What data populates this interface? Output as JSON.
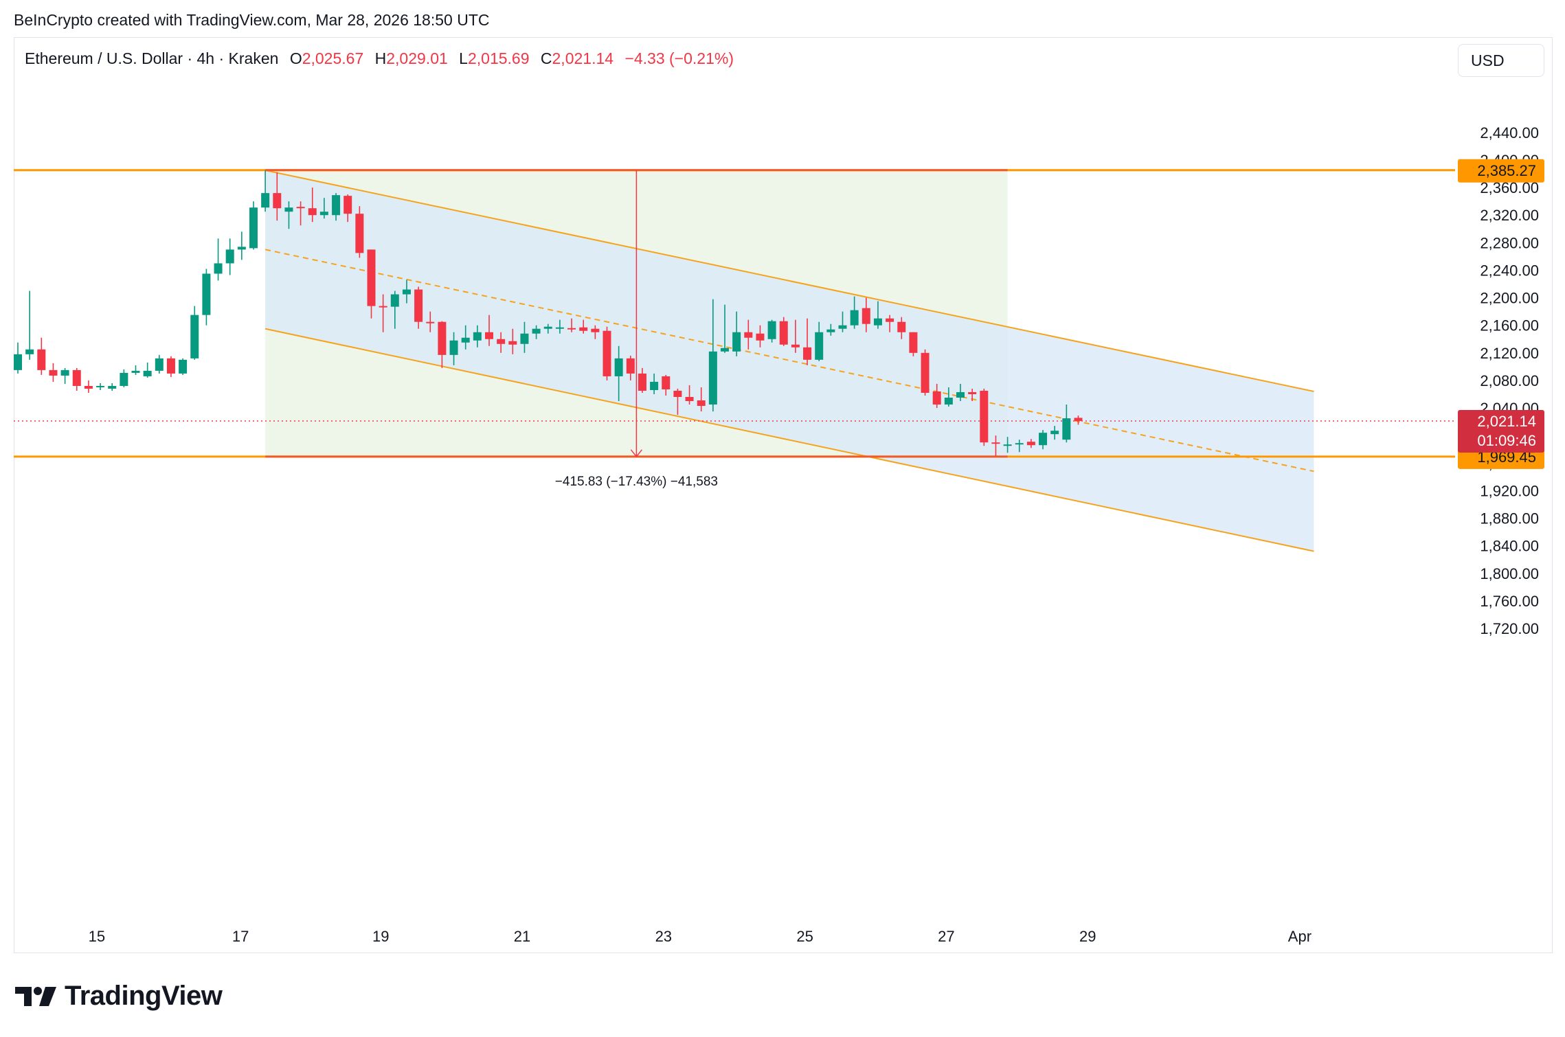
{
  "header": {
    "credit": "BeInCrypto created with TradingView.com, Mar 28, 2026 18:50 UTC"
  },
  "legend": {
    "symbol": "Ethereum / U.S. Dollar · 4h · Kraken",
    "o_label": "O",
    "o_value": "2,025.67",
    "h_label": "H",
    "h_value": "2,029.01",
    "l_label": "L",
    "l_value": "2,015.69",
    "c_label": "C",
    "c_value": "2,021.14",
    "change": "−4.33 (−0.21%)"
  },
  "currency": "USD",
  "brand": {
    "name": "TradingView",
    "icon": "tradingview-logo-icon"
  },
  "colors": {
    "up": "#089981",
    "down": "#f23645",
    "channel_line": "#f7a21b",
    "level_line": "#ff9800",
    "channel_fill": "#dbe9f8",
    "range_fill": "#eef6ea",
    "measure_line": "#f23645"
  },
  "chart_data": {
    "type": "candlestick",
    "timeframe": "4h",
    "y_axis": {
      "ticks": [
        "2,440.00",
        "2,400.00",
        "2,360.00",
        "2,320.00",
        "2,280.00",
        "2,240.00",
        "2,200.00",
        "2,160.00",
        "2,120.00",
        "2,080.00",
        "2,040.00",
        "1,960.00",
        "1,920.00",
        "1,880.00",
        "1,840.00",
        "1,800.00",
        "1,760.00",
        "1,720.00"
      ],
      "range": [
        1715,
        2450
      ]
    },
    "x_axis": {
      "ticks": [
        "15",
        "17",
        "19",
        "21",
        "23",
        "25",
        "27",
        "29",
        "Apr"
      ]
    },
    "price_labels": {
      "resistance": "2,385.27",
      "support": "1,969.45",
      "current_price": "2,021.14",
      "countdown": "01:09:46"
    },
    "levels": {
      "resistance": 2385.27,
      "support": 1969.45,
      "current": 2021.14
    },
    "measure_label": "−415.83 (−17.43%) −41,583",
    "channel": {
      "start_index": 21,
      "end_index": 110,
      "upper": [
        2385,
        2064
      ],
      "lower": [
        2155,
        1832
      ]
    },
    "range_box": {
      "start_index": 21,
      "end_index": 84
    },
    "candles": [
      {
        "o": 2095,
        "h": 2135,
        "l": 2090,
        "c": 2118
      },
      {
        "o": 2118,
        "h": 2210,
        "l": 2110,
        "c": 2125
      },
      {
        "o": 2125,
        "h": 2142,
        "l": 2088,
        "c": 2095
      },
      {
        "o": 2095,
        "h": 2105,
        "l": 2078,
        "c": 2087
      },
      {
        "o": 2087,
        "h": 2098,
        "l": 2075,
        "c": 2095
      },
      {
        "o": 2095,
        "h": 2098,
        "l": 2065,
        "c": 2072
      },
      {
        "o": 2072,
        "h": 2080,
        "l": 2062,
        "c": 2068
      },
      {
        "o": 2070,
        "h": 2076,
        "l": 2066,
        "c": 2072
      },
      {
        "o": 2068,
        "h": 2076,
        "l": 2065,
        "c": 2072
      },
      {
        "o": 2072,
        "h": 2096,
        "l": 2070,
        "c": 2091
      },
      {
        "o": 2091,
        "h": 2102,
        "l": 2088,
        "c": 2094
      },
      {
        "o": 2086,
        "h": 2106,
        "l": 2084,
        "c": 2094
      },
      {
        "o": 2094,
        "h": 2117,
        "l": 2090,
        "c": 2112
      },
      {
        "o": 2112,
        "h": 2115,
        "l": 2085,
        "c": 2090
      },
      {
        "o": 2090,
        "h": 2112,
        "l": 2088,
        "c": 2110
      },
      {
        "o": 2112,
        "h": 2188,
        "l": 2110,
        "c": 2175
      },
      {
        "o": 2175,
        "h": 2242,
        "l": 2160,
        "c": 2235
      },
      {
        "o": 2235,
        "h": 2286,
        "l": 2225,
        "c": 2250
      },
      {
        "o": 2250,
        "h": 2286,
        "l": 2233,
        "c": 2270
      },
      {
        "o": 2270,
        "h": 2296,
        "l": 2255,
        "c": 2274
      },
      {
        "o": 2272,
        "h": 2340,
        "l": 2270,
        "c": 2331
      },
      {
        "o": 2331,
        "h": 2385,
        "l": 2325,
        "c": 2352
      },
      {
        "o": 2352,
        "h": 2382,
        "l": 2312,
        "c": 2330
      },
      {
        "o": 2325,
        "h": 2340,
        "l": 2300,
        "c": 2331
      },
      {
        "o": 2332,
        "h": 2340,
        "l": 2305,
        "c": 2331
      },
      {
        "o": 2330,
        "h": 2360,
        "l": 2310,
        "c": 2320
      },
      {
        "o": 2320,
        "h": 2345,
        "l": 2315,
        "c": 2325
      },
      {
        "o": 2320,
        "h": 2352,
        "l": 2312,
        "c": 2349
      },
      {
        "o": 2348,
        "h": 2350,
        "l": 2310,
        "c": 2322
      },
      {
        "o": 2322,
        "h": 2333,
        "l": 2258,
        "c": 2265
      },
      {
        "o": 2270,
        "h": 2270,
        "l": 2170,
        "c": 2188
      },
      {
        "o": 2188,
        "h": 2205,
        "l": 2150,
        "c": 2187
      },
      {
        "o": 2187,
        "h": 2210,
        "l": 2155,
        "c": 2205
      },
      {
        "o": 2205,
        "h": 2226,
        "l": 2192,
        "c": 2212
      },
      {
        "o": 2212,
        "h": 2216,
        "l": 2155,
        "c": 2165
      },
      {
        "o": 2165,
        "h": 2180,
        "l": 2150,
        "c": 2163
      },
      {
        "o": 2165,
        "h": 2166,
        "l": 2098,
        "c": 2117
      },
      {
        "o": 2117,
        "h": 2150,
        "l": 2102,
        "c": 2138
      },
      {
        "o": 2135,
        "h": 2160,
        "l": 2125,
        "c": 2142
      },
      {
        "o": 2138,
        "h": 2160,
        "l": 2128,
        "c": 2150
      },
      {
        "o": 2150,
        "h": 2175,
        "l": 2130,
        "c": 2140
      },
      {
        "o": 2140,
        "h": 2150,
        "l": 2120,
        "c": 2133
      },
      {
        "o": 2137,
        "h": 2155,
        "l": 2118,
        "c": 2132
      },
      {
        "o": 2133,
        "h": 2165,
        "l": 2120,
        "c": 2148
      },
      {
        "o": 2148,
        "h": 2160,
        "l": 2140,
        "c": 2155
      },
      {
        "o": 2155,
        "h": 2162,
        "l": 2148,
        "c": 2158
      },
      {
        "o": 2155,
        "h": 2168,
        "l": 2148,
        "c": 2157
      },
      {
        "o": 2156,
        "h": 2170,
        "l": 2150,
        "c": 2155
      },
      {
        "o": 2157,
        "h": 2168,
        "l": 2148,
        "c": 2152
      },
      {
        "o": 2155,
        "h": 2160,
        "l": 2140,
        "c": 2150
      },
      {
        "o": 2152,
        "h": 2158,
        "l": 2080,
        "c": 2086
      },
      {
        "o": 2086,
        "h": 2130,
        "l": 2050,
        "c": 2112
      },
      {
        "o": 2112,
        "h": 2116,
        "l": 2080,
        "c": 2090
      },
      {
        "o": 2090,
        "h": 2098,
        "l": 2062,
        "c": 2065
      },
      {
        "o": 2066,
        "h": 2090,
        "l": 2060,
        "c": 2078
      },
      {
        "o": 2086,
        "h": 2088,
        "l": 2058,
        "c": 2067
      },
      {
        "o": 2065,
        "h": 2068,
        "l": 2030,
        "c": 2056
      },
      {
        "o": 2056,
        "h": 2073,
        "l": 2045,
        "c": 2050
      },
      {
        "o": 2051,
        "h": 2070,
        "l": 2035,
        "c": 2043
      },
      {
        "o": 2045,
        "h": 2198,
        "l": 2035,
        "c": 2122
      },
      {
        "o": 2122,
        "h": 2190,
        "l": 2120,
        "c": 2127
      },
      {
        "o": 2122,
        "h": 2180,
        "l": 2115,
        "c": 2150
      },
      {
        "o": 2150,
        "h": 2168,
        "l": 2125,
        "c": 2142
      },
      {
        "o": 2148,
        "h": 2160,
        "l": 2128,
        "c": 2138
      },
      {
        "o": 2140,
        "h": 2168,
        "l": 2135,
        "c": 2166
      },
      {
        "o": 2166,
        "h": 2172,
        "l": 2130,
        "c": 2132
      },
      {
        "o": 2132,
        "h": 2168,
        "l": 2120,
        "c": 2128
      },
      {
        "o": 2128,
        "h": 2170,
        "l": 2102,
        "c": 2110
      },
      {
        "o": 2110,
        "h": 2165,
        "l": 2108,
        "c": 2150
      },
      {
        "o": 2150,
        "h": 2162,
        "l": 2145,
        "c": 2154
      },
      {
        "o": 2155,
        "h": 2180,
        "l": 2150,
        "c": 2160
      },
      {
        "o": 2160,
        "h": 2202,
        "l": 2155,
        "c": 2182
      },
      {
        "o": 2185,
        "h": 2200,
        "l": 2150,
        "c": 2162
      },
      {
        "o": 2160,
        "h": 2195,
        "l": 2155,
        "c": 2170
      },
      {
        "o": 2170,
        "h": 2175,
        "l": 2150,
        "c": 2165
      },
      {
        "o": 2165,
        "h": 2172,
        "l": 2140,
        "c": 2150
      },
      {
        "o": 2150,
        "h": 2150,
        "l": 2115,
        "c": 2120
      },
      {
        "o": 2120,
        "h": 2125,
        "l": 2058,
        "c": 2062
      },
      {
        "o": 2064,
        "h": 2075,
        "l": 2040,
        "c": 2045
      },
      {
        "o": 2045,
        "h": 2070,
        "l": 2042,
        "c": 2055
      },
      {
        "o": 2055,
        "h": 2075,
        "l": 2050,
        "c": 2063
      },
      {
        "o": 2063,
        "h": 2068,
        "l": 2050,
        "c": 2060
      },
      {
        "o": 2065,
        "h": 2068,
        "l": 1985,
        "c": 1990
      },
      {
        "o": 1990,
        "h": 2000,
        "l": 1970,
        "c": 1988
      },
      {
        "o": 1985,
        "h": 1998,
        "l": 1975,
        "c": 1987
      },
      {
        "o": 1987,
        "h": 1994,
        "l": 1976,
        "c": 1989
      },
      {
        "o": 1991,
        "h": 1995,
        "l": 1982,
        "c": 1986
      },
      {
        "o": 1986,
        "h": 2008,
        "l": 1980,
        "c": 2004
      },
      {
        "o": 2002,
        "h": 2014,
        "l": 1994,
        "c": 2007
      },
      {
        "o": 1994,
        "h": 2045,
        "l": 1990,
        "c": 2025
      },
      {
        "o": 2025.67,
        "h": 2029.01,
        "l": 2015.69,
        "c": 2021.14
      }
    ]
  }
}
